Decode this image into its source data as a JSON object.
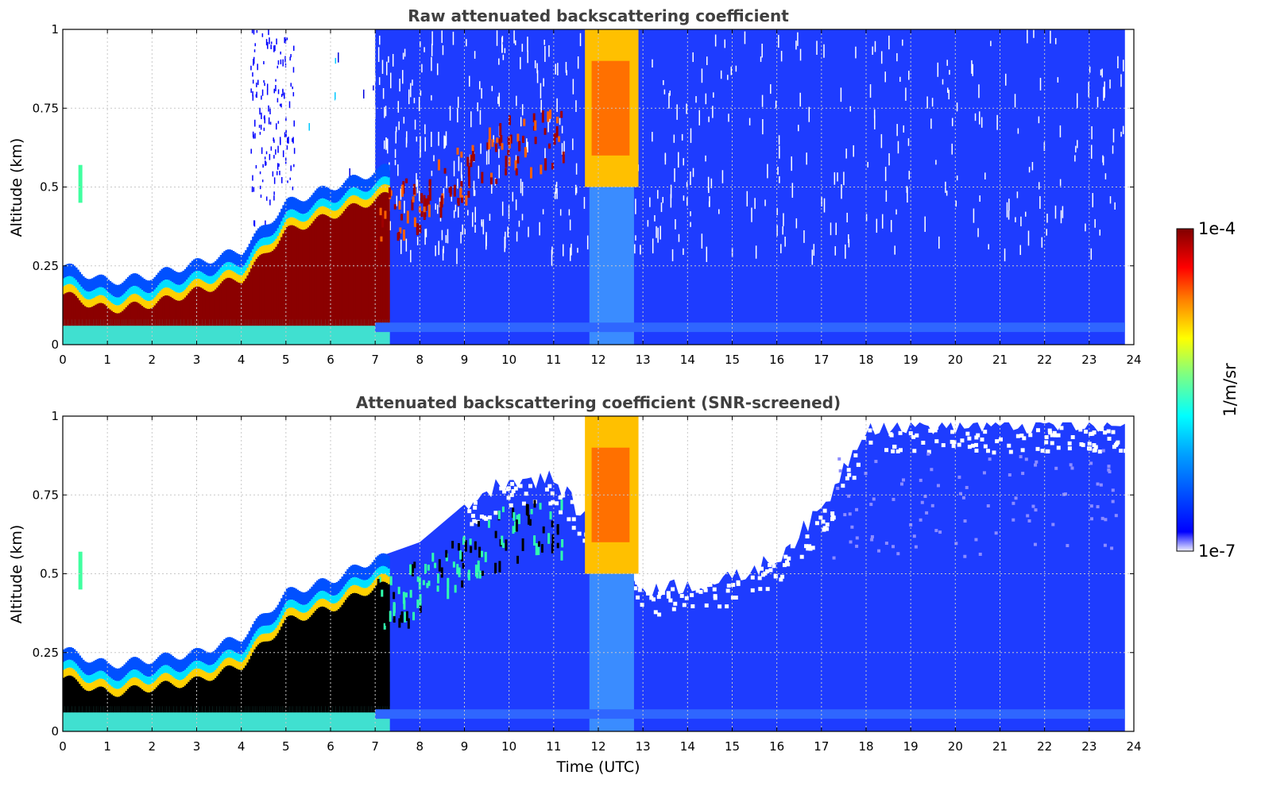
{
  "chart_data": [
    {
      "type": "heatmap",
      "title": "Raw attenuated backscattering coefficient",
      "xlabel": "",
      "ylabel": "Altitude (km)",
      "xlim": [
        0,
        24
      ],
      "ylim": [
        0,
        1
      ],
      "xticks": [
        "0",
        "1",
        "2",
        "3",
        "4",
        "5",
        "6",
        "7",
        "8",
        "9",
        "10",
        "11",
        "12",
        "13",
        "14",
        "15",
        "16",
        "17",
        "18",
        "19",
        "20",
        "21",
        "22",
        "23",
        "24"
      ],
      "yticks": [
        "0",
        "0.25",
        "0.5",
        "0.75",
        "1"
      ],
      "grid": true,
      "screened": false,
      "colormap": "jet",
      "scale": "log",
      "features": {
        "aerosol_layer_top_km": [
          [
            0,
            0.25
          ],
          [
            1,
            0.2
          ],
          [
            2,
            0.22
          ],
          [
            3,
            0.26
          ],
          [
            4,
            0.3
          ],
          [
            5,
            0.45
          ],
          [
            6,
            0.5
          ],
          [
            7,
            0.55
          ],
          [
            8,
            0.6
          ],
          [
            9,
            0.7
          ],
          [
            10,
            0.78
          ],
          [
            11,
            0.8
          ]
        ],
        "precipitation_period_utc": [
          11.7,
          12.9
        ],
        "data_end_utc": 23.8
      }
    },
    {
      "type": "heatmap",
      "title": "Attenuated backscattering coefficient (SNR-screened)",
      "xlabel": "Time (UTC)",
      "ylabel": "Altitude (km)",
      "xlim": [
        0,
        24
      ],
      "ylim": [
        0,
        1
      ],
      "xticks": [
        "0",
        "1",
        "2",
        "3",
        "4",
        "5",
        "6",
        "7",
        "8",
        "9",
        "10",
        "11",
        "12",
        "13",
        "14",
        "15",
        "16",
        "17",
        "18",
        "19",
        "20",
        "21",
        "22",
        "23",
        "24"
      ],
      "yticks": [
        "0",
        "0.25",
        "0.5",
        "0.75",
        "1"
      ],
      "grid": true,
      "screened": true,
      "colormap": "jet",
      "scale": "log",
      "features": {
        "screened_signal_top_km": [
          [
            0,
            0.26
          ],
          [
            4,
            0.3
          ],
          [
            5,
            0.44
          ],
          [
            7,
            0.55
          ],
          [
            8,
            0.6
          ],
          [
            9,
            0.72
          ],
          [
            10,
            0.8
          ],
          [
            11,
            0.8
          ],
          [
            13,
            0.45
          ],
          [
            15,
            0.48
          ],
          [
            16,
            0.55
          ],
          [
            17,
            0.7
          ],
          [
            18,
            0.97
          ],
          [
            23.8,
            0.97
          ]
        ],
        "precipitation_period_utc": [
          11.7,
          12.9
        ],
        "data_end_utc": 23.8
      }
    }
  ],
  "colorbar": {
    "label": "1/m/sr",
    "max_label": "1e-4",
    "min_label": "1e-7",
    "colors": [
      "#f0f0ff",
      "#0000ff",
      "#00a0ff",
      "#00ffff",
      "#80ff80",
      "#ffff00",
      "#ff8000",
      "#ff0000",
      "#800000"
    ]
  }
}
